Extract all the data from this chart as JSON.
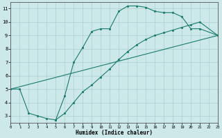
{
  "xlabel": "Humidex (Indice chaleur)",
  "xlim": [
    0,
    23
  ],
  "ylim": [
    2.5,
    11.5
  ],
  "xticks": [
    0,
    1,
    2,
    3,
    4,
    5,
    6,
    7,
    8,
    9,
    10,
    11,
    12,
    13,
    14,
    15,
    16,
    17,
    18,
    19,
    20,
    21,
    22,
    23
  ],
  "yticks": [
    3,
    4,
    5,
    6,
    7,
    8,
    9,
    10,
    11
  ],
  "bg_color": "#cce8e8",
  "line_color": "#1a7a6e",
  "line1_x": [
    0,
    1,
    2,
    3,
    4,
    5,
    6,
    7,
    8,
    9,
    10,
    11,
    12,
    13,
    14,
    15,
    16,
    17,
    18,
    19,
    20,
    21,
    23
  ],
  "line1_y": [
    5.0,
    5.0,
    3.2,
    3.0,
    2.8,
    2.7,
    4.5,
    7.0,
    8.1,
    9.3,
    9.5,
    9.5,
    10.8,
    11.2,
    11.2,
    11.1,
    10.8,
    10.7,
    10.7,
    10.4,
    9.5,
    9.5,
    9.0
  ],
  "line2_x": [
    0,
    23
  ],
  "line2_y": [
    5.0,
    9.0
  ],
  "line3_x": [
    5,
    6,
    7,
    8,
    9,
    10,
    11,
    12,
    13,
    14,
    15,
    16,
    17,
    18,
    19,
    20,
    21,
    23
  ],
  "line3_y": [
    2.7,
    3.2,
    4.0,
    4.8,
    5.3,
    5.9,
    6.5,
    7.2,
    7.8,
    8.3,
    8.7,
    9.0,
    9.2,
    9.4,
    9.6,
    9.8,
    10.0,
    9.0
  ]
}
